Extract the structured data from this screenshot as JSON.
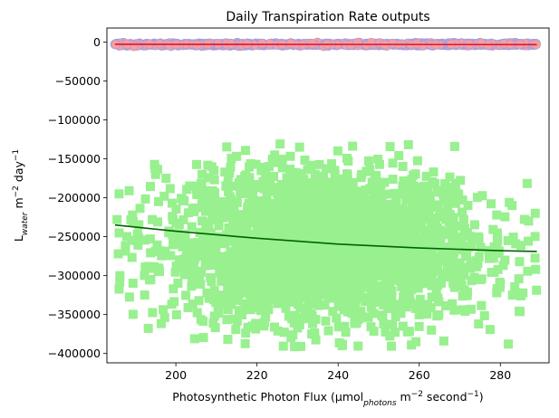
{
  "chart_data": {
    "type": "scatter",
    "title": "Daily Transpiration Rate outputs",
    "xlabel": {
      "prefix": "Photosynthetic Photon Flux (µmol",
      "sub": "photons",
      "mid": " m",
      "sup1": "−2",
      "mid2": " second",
      "sup2": "−1",
      "suffix": ")"
    },
    "ylabel": {
      "prefix": "L",
      "sub": "water",
      "mid": " m",
      "sup1": "−2",
      "mid2": " day",
      "sup2": "−1"
    },
    "xlim": [
      183,
      292
    ],
    "ylim": [
      -412000,
      18000
    ],
    "x_ticks": [
      200,
      220,
      240,
      260,
      280
    ],
    "y_ticks": [
      0,
      -50000,
      -100000,
      -150000,
      -200000,
      -250000,
      -300000,
      -350000,
      -400000
    ],
    "x_tick_labels": [
      "200",
      "220",
      "240",
      "260",
      "280"
    ],
    "y_tick_labels": [
      "0",
      "−50000",
      "−100000",
      "−150000",
      "−200000",
      "−250000",
      "−300000",
      "−350000",
      "−400000"
    ],
    "grid": false,
    "series": [
      {
        "marker": "square",
        "color": "#98f08f",
        "cloud": {
          "x_range": [
            185,
            289
          ],
          "x_center": 237,
          "x_spread": 20,
          "y_center": -265000,
          "y_spread": 48000,
          "y_min": -395000,
          "y_max": -130000
        },
        "sample_points": [
          [
            185.5,
            -228000
          ],
          [
            185.8,
            -272000
          ],
          [
            186,
            -195000
          ],
          [
            186.2,
            -300000
          ],
          [
            195,
            -170000
          ],
          [
            230.5,
            -135000
          ],
          [
            233.5,
            -375000
          ],
          [
            241,
            -390000
          ],
          [
            263,
            -370000
          ],
          [
            283,
            -325000
          ],
          [
            288.6,
            -220000
          ],
          [
            288.7,
            -292000
          ]
        ],
        "fit": {
          "color": "#006400",
          "x": [
            185,
            200,
            220,
            240,
            260,
            280,
            289
          ],
          "y": [
            -235000,
            -243000,
            -252000,
            -259500,
            -264500,
            -268000,
            -269000
          ]
        }
      },
      {
        "marker": "circle",
        "color": "#f59f9f",
        "edge_color": "#9b9fe6",
        "cloud": {
          "x_range": [
            185,
            289
          ],
          "y_center": -3000,
          "y_spread": 800,
          "y_min": -6000,
          "y_max": 0
        },
        "sample_points": [
          [
            185.2,
            -3000
          ],
          [
            193.5,
            -2600
          ],
          [
            282.5,
            -2800
          ],
          [
            288.8,
            -3200
          ]
        ],
        "fit": {
          "color": "#dc143c",
          "x": [
            185,
            289
          ],
          "y": [
            -2800,
            -3300
          ]
        }
      }
    ]
  }
}
